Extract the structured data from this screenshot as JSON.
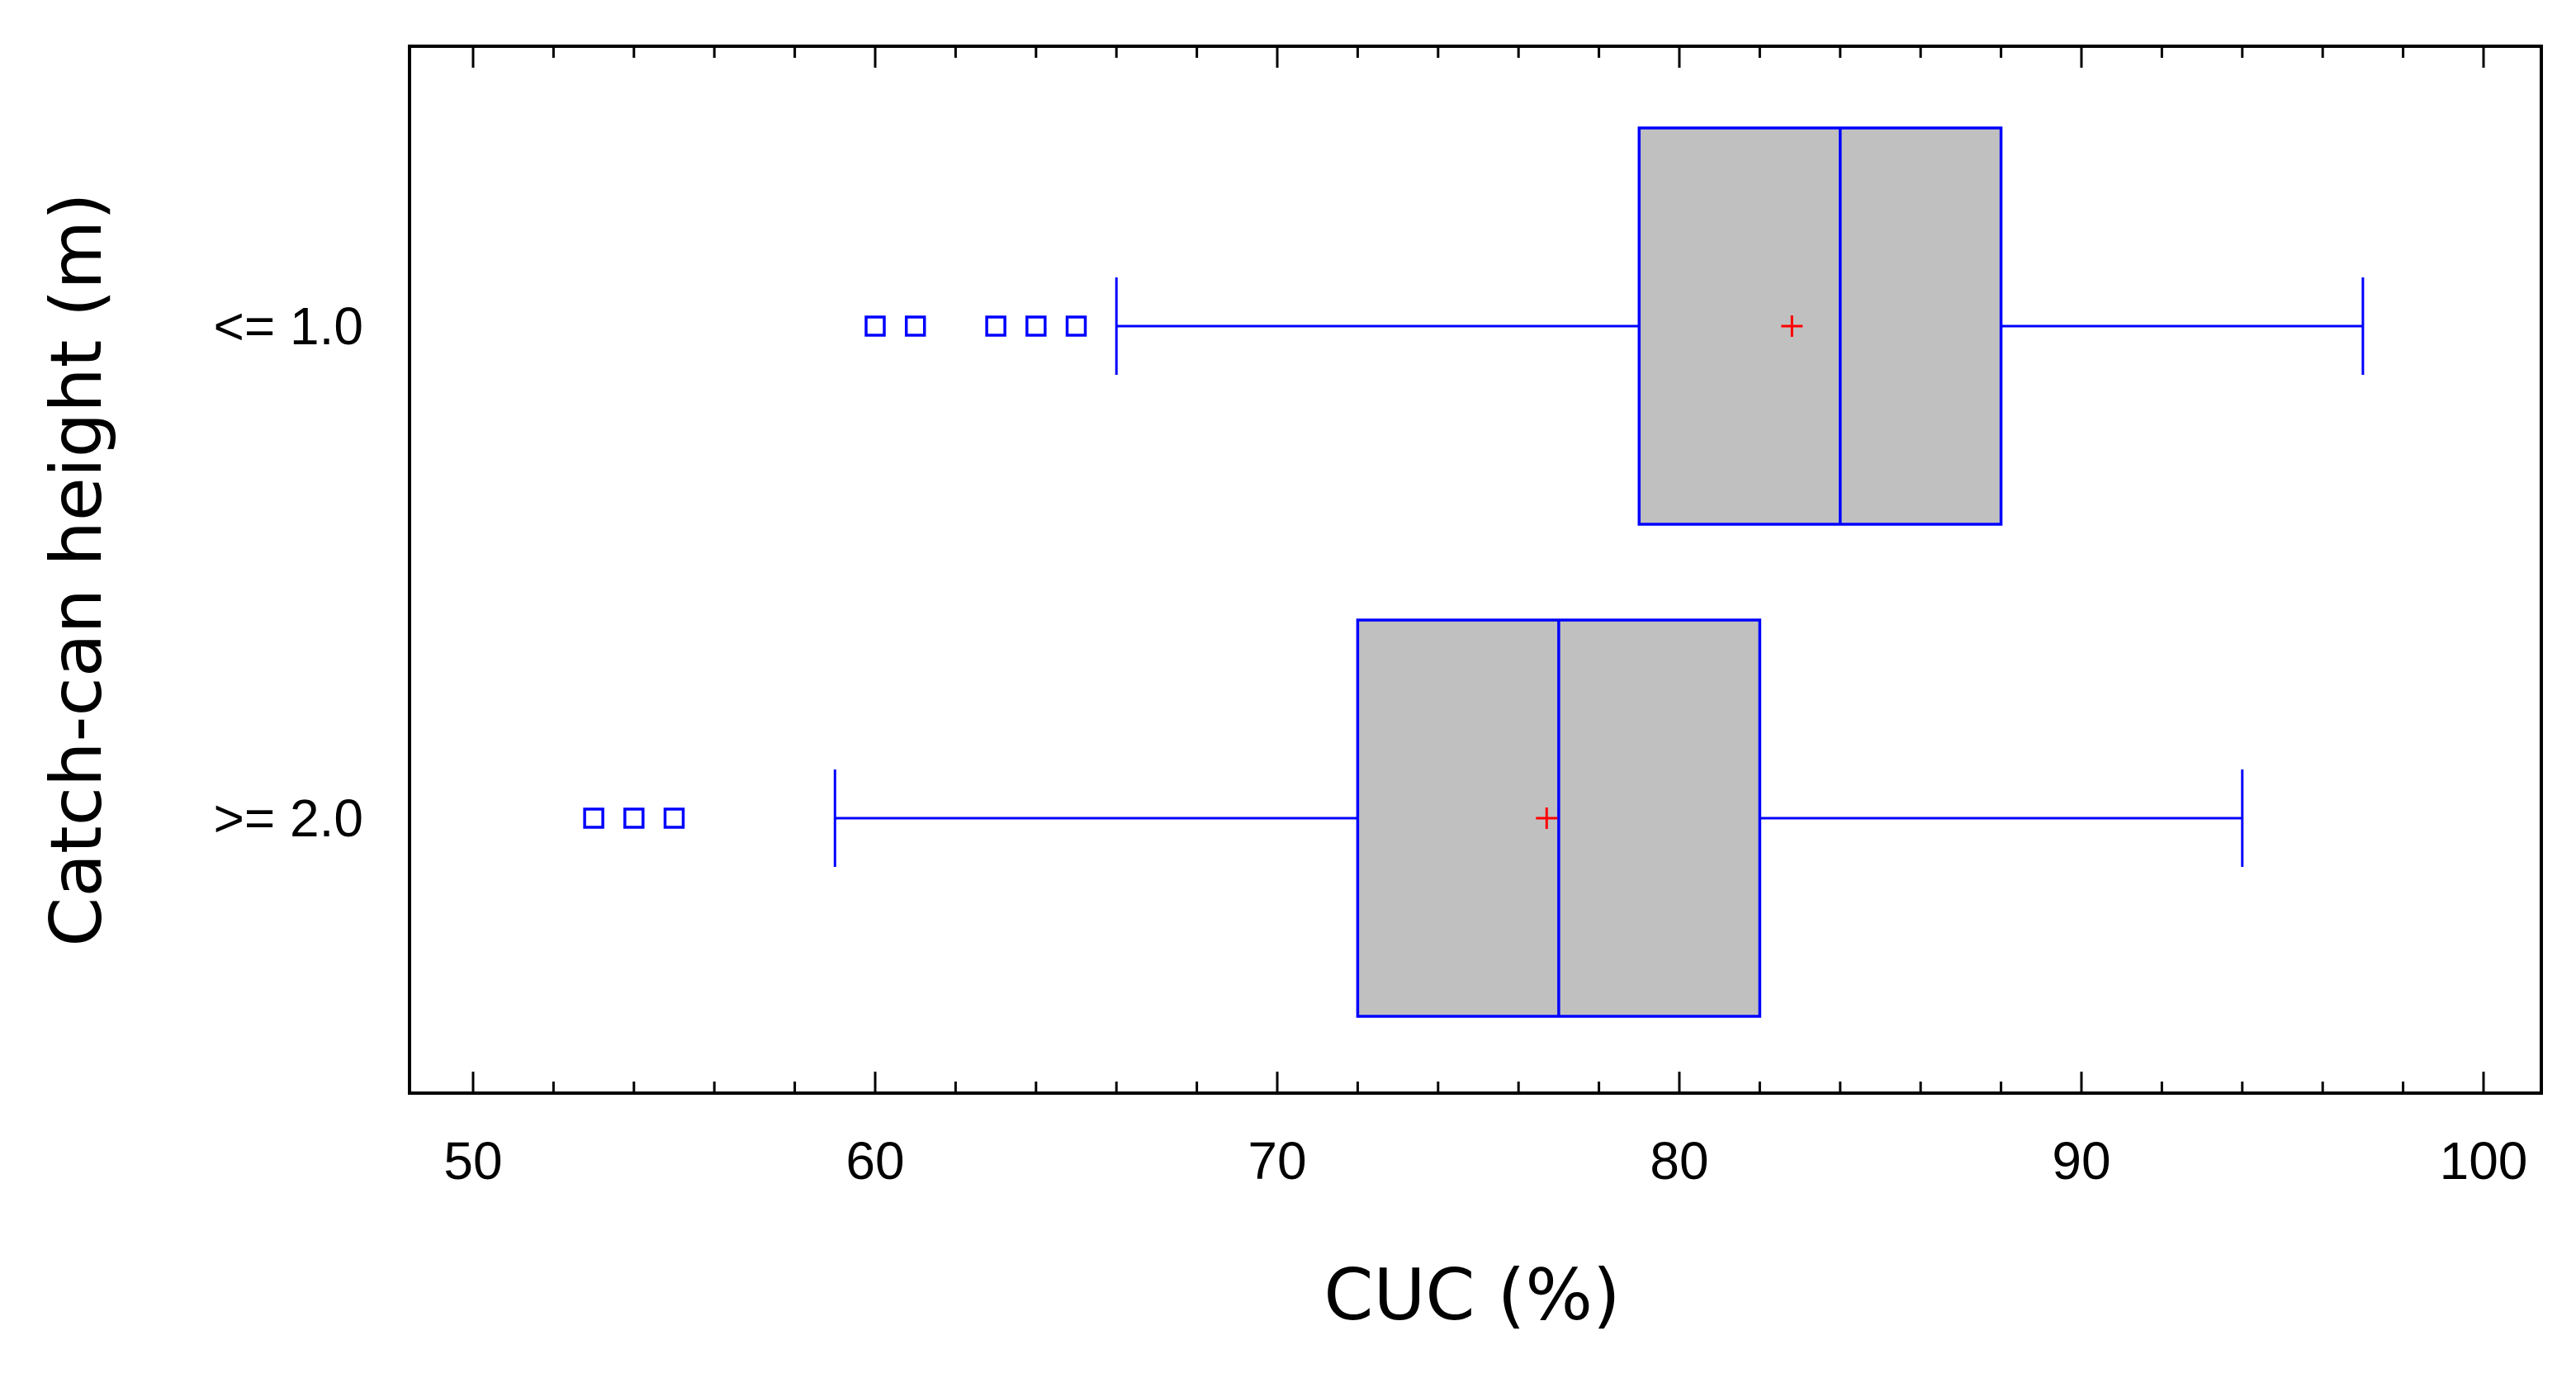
{
  "chart_data": {
    "type": "boxplot",
    "orientation": "horizontal",
    "xlabel": "CUC (%)",
    "ylabel": "Catch-can height (m)",
    "xlim": [
      50,
      100
    ],
    "xticks": [
      50,
      60,
      70,
      80,
      90,
      100
    ],
    "minor_xtick_step": 2,
    "grid": false,
    "colors": {
      "box_fill": "#c0c0c0",
      "box_stroke": "#0000ff",
      "mean_marker": "#ff0000",
      "outlier": "#0000ff"
    },
    "groups": [
      {
        "label": "<= 1.0",
        "whisker_low": 66,
        "q1": 79,
        "median": 84,
        "q3": 88,
        "whisker_high": 97,
        "mean": 82.8,
        "outliers": [
          60,
          61,
          63,
          64,
          65
        ]
      },
      {
        "label": ">= 2.0",
        "whisker_low": 59,
        "q1": 72,
        "median": 77,
        "q3": 82,
        "whisker_high": 94,
        "mean": 76.7,
        "outliers": [
          53,
          54,
          55
        ]
      }
    ]
  }
}
